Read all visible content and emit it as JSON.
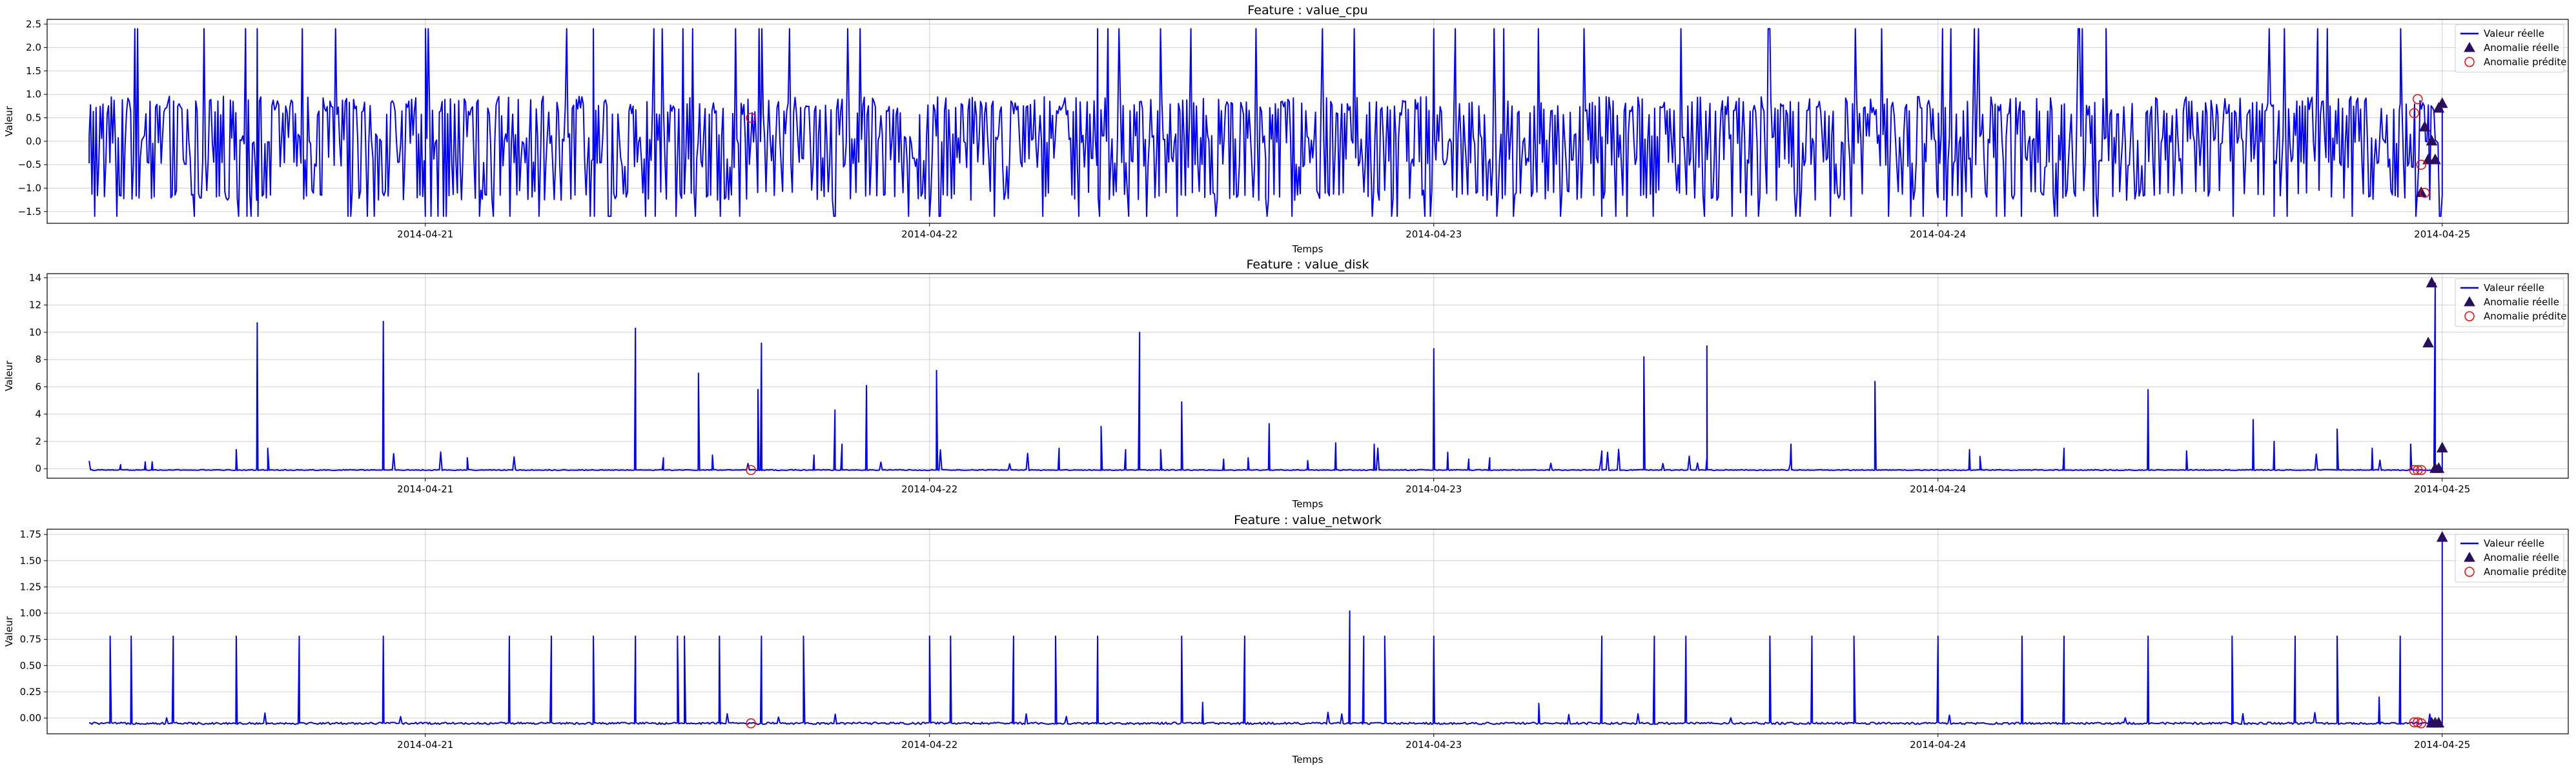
{
  "chart_data": [
    {
      "type": "line",
      "title": "Feature : value_cpu",
      "xlabel": "Temps",
      "ylabel": "Valeur",
      "x_ticks": [
        "2014-04-21",
        "2014-04-22",
        "2014-04-23",
        "2014-04-24",
        "2014-04-25"
      ],
      "x_range": [
        "2014-04-20 06:00",
        "2014-04-25 06:00"
      ],
      "ylim": [
        -1.75,
        2.6
      ],
      "y_ticks": [
        "2.5",
        "2.0",
        "1.5",
        "1.0",
        "0.5",
        "0.0",
        "−0.5",
        "−1.0",
        "−1.5"
      ],
      "y_tick_values": [
        2.5,
        2.0,
        1.5,
        1.0,
        0.5,
        0.0,
        -0.5,
        -1.0,
        -1.5
      ],
      "grid": true,
      "legend": "top-right",
      "series": [
        {
          "name": "Valeur réelle",
          "color": "#0000ff",
          "x": [
            "2014-04-20 08:00",
            "2014-04-20 16:00",
            "2014-04-21 00:00",
            "2014-04-21 08:00",
            "2014-04-21 16:00",
            "2014-04-22 00:00",
            "2014-04-22 08:00",
            "2014-04-22 16:00",
            "2014-04-23 00:00",
            "2014-04-23 08:00",
            "2014-04-23 16:00",
            "2014-04-24 00:00",
            "2014-04-24 08:00",
            "2014-04-24 16:00",
            "2014-04-24 22:00",
            "2014-04-25 00:00"
          ],
          "values": [
            0.1,
            2.4,
            -1.6,
            2.4,
            0.9,
            -1.6,
            2.4,
            -1.2,
            2.4,
            -1.6,
            2.4,
            -1.2,
            2.4,
            -1.6,
            0.8,
            0.7
          ]
        },
        {
          "name": "Anomalie réelle",
          "marker": "triangle",
          "color": "#2a0f5e",
          "x": [
            "2014-04-24 23:00",
            "2014-04-24 23:10",
            "2014-04-24 23:20",
            "2014-04-24 23:30",
            "2014-04-24 23:40",
            "2014-04-24 23:50",
            "2014-04-25 00:00"
          ],
          "values": [
            -1.1,
            0.3,
            -0.4,
            0.0,
            -0.4,
            0.7,
            0.8
          ]
        },
        {
          "name": "Anomalie prédite",
          "marker": "circle",
          "color": "#ff0000",
          "x": [
            "2014-04-21 15:30",
            "2014-04-24 22:40",
            "2014-04-24 22:50",
            "2014-04-24 23:00",
            "2014-04-24 23:10"
          ],
          "values": [
            0.5,
            0.6,
            0.9,
            -0.5,
            -1.1
          ]
        }
      ]
    },
    {
      "type": "line",
      "title": "Feature : value_disk",
      "xlabel": "Temps",
      "ylabel": "Valeur",
      "x_ticks": [
        "2014-04-21",
        "2014-04-22",
        "2014-04-23",
        "2014-04-24",
        "2014-04-25"
      ],
      "x_range": [
        "2014-04-20 06:00",
        "2014-04-25 06:00"
      ],
      "ylim": [
        -0.7,
        14.3
      ],
      "y_ticks": [
        "14",
        "12",
        "10",
        "8",
        "6",
        "4",
        "2",
        "0"
      ],
      "y_tick_values": [
        14,
        12,
        10,
        8,
        6,
        4,
        2,
        0
      ],
      "grid": true,
      "legend": "top-right",
      "series": [
        {
          "name": "Valeur réelle",
          "color": "#0000ff",
          "x": [
            "2014-04-20 16:00",
            "2014-04-20 22:00",
            "2014-04-21 10:00",
            "2014-04-21 13:00",
            "2014-04-21 16:00",
            "2014-04-21 21:00",
            "2014-04-22 10:00",
            "2014-04-23 00:00",
            "2014-04-23 10:00",
            "2014-04-23 13:00",
            "2014-04-23 21:00",
            "2014-04-24 10:00",
            "2014-04-24 15:00",
            "2014-04-24 19:00",
            "2014-04-24 23:40",
            "2014-04-25 00:00"
          ],
          "values": [
            10.7,
            10.8,
            10.3,
            7.0,
            9.2,
            6.1,
            10.0,
            8.8,
            8.2,
            9.0,
            6.4,
            5.8,
            3.6,
            2.9,
            13.6,
            1.5
          ]
        },
        {
          "name": "Anomalie réelle",
          "marker": "triangle",
          "color": "#2a0f5e",
          "x": [
            "2014-04-24 23:20",
            "2014-04-24 23:30",
            "2014-04-24 23:40",
            "2014-04-24 23:50",
            "2014-04-25 00:00"
          ],
          "values": [
            9.2,
            13.6,
            0.0,
            0.0,
            1.5
          ]
        },
        {
          "name": "Anomalie prédite",
          "marker": "circle",
          "color": "#ff0000",
          "x": [
            "2014-04-21 15:30",
            "2014-04-24 22:40",
            "2014-04-24 22:50",
            "2014-04-24 23:00"
          ],
          "values": [
            -0.1,
            -0.1,
            -0.1,
            -0.1
          ]
        }
      ]
    },
    {
      "type": "line",
      "title": "Feature : value_network",
      "xlabel": "Temps",
      "ylabel": "Valeur",
      "x_ticks": [
        "2014-04-21",
        "2014-04-22",
        "2014-04-23",
        "2014-04-24",
        "2014-04-25"
      ],
      "x_range": [
        "2014-04-20 06:00",
        "2014-04-25 06:00"
      ],
      "ylim": [
        -0.15,
        1.8
      ],
      "y_ticks": [
        "1.75",
        "1.50",
        "1.25",
        "1.00",
        "0.75",
        "0.50",
        "0.25",
        "0.00"
      ],
      "y_tick_values": [
        1.75,
        1.5,
        1.25,
        1.0,
        0.75,
        0.5,
        0.25,
        0.0
      ],
      "grid": true,
      "legend": "top-right",
      "series": [
        {
          "name": "Valeur réelle",
          "color": "#0000ff",
          "x": [
            "2014-04-20 09:00",
            "2014-04-20 12:00",
            "2014-04-20 18:00",
            "2014-04-21 04:00",
            "2014-04-21 12:00",
            "2014-04-21 16:00",
            "2014-04-22 00:00",
            "2014-04-22 12:00",
            "2014-04-22 20:00",
            "2014-04-23 00:00",
            "2014-04-23 08:00",
            "2014-04-23 16:00",
            "2014-04-24 00:00",
            "2014-04-24 10:00",
            "2014-04-24 22:00",
            "2014-04-25 00:00"
          ],
          "values": [
            0.78,
            0.78,
            0.78,
            0.78,
            0.78,
            0.78,
            0.78,
            0.78,
            1.02,
            0.78,
            0.78,
            0.78,
            0.78,
            0.78,
            0.78,
            1.72
          ]
        },
        {
          "name": "Anomalie réelle",
          "marker": "triangle",
          "color": "#2a0f5e",
          "x": [
            "2014-04-24 23:30",
            "2014-04-24 23:40",
            "2014-04-24 23:50",
            "2014-04-25 00:00"
          ],
          "values": [
            -0.05,
            -0.05,
            -0.05,
            1.72
          ]
        },
        {
          "name": "Anomalie prédite",
          "marker": "circle",
          "color": "#ff0000",
          "x": [
            "2014-04-21 15:30",
            "2014-04-24 22:40",
            "2014-04-24 22:50",
            "2014-04-24 23:00"
          ],
          "values": [
            -0.05,
            -0.04,
            -0.04,
            -0.05
          ]
        }
      ]
    }
  ]
}
